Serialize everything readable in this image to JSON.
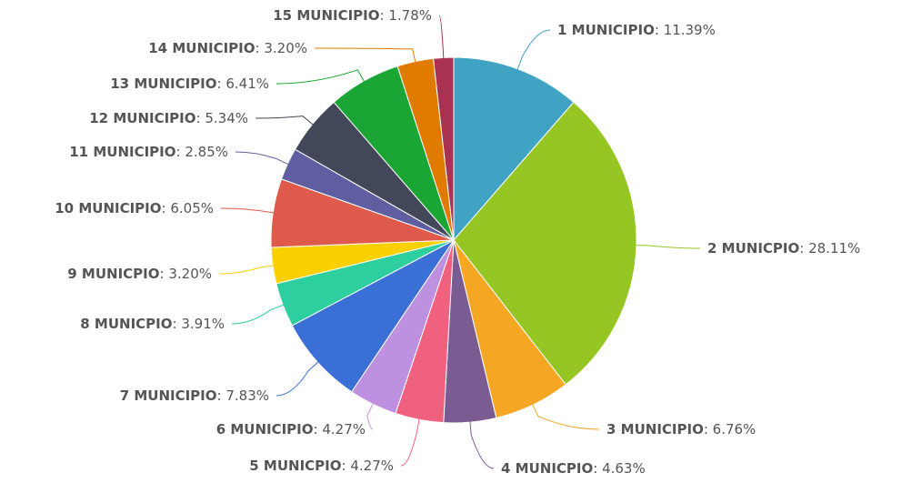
{
  "chart_data": {
    "type": "pie",
    "categories": [
      "1 MUNICIPIO",
      "2 MUNICPIO",
      "3 MUNICIPIO",
      "4 MUNICPIO",
      "5 MUNICPIO",
      "6 MUNICIPIO",
      "7 MUNICIPIO",
      "8 MUNICPIO",
      "9 MUNICPIO",
      "10 MUNICIPIO",
      "11 MUNICIPIO",
      "12 MUNICIPIO",
      "13 MUNICIPIO",
      "14 MUNICIPIO",
      "15 MUNICIPIO"
    ],
    "values": [
      11.39,
      28.11,
      6.76,
      4.63,
      4.27,
      4.27,
      7.83,
      3.91,
      3.2,
      6.05,
      2.85,
      5.34,
      6.41,
      3.2,
      1.78
    ],
    "value_labels": [
      "11.39%",
      "28.11%",
      "6.76%",
      "4.63%",
      "4.27%",
      "4.27%",
      "7.83%",
      "3.91%",
      "3.20%",
      "6.05%",
      "2.85%",
      "5.34%",
      "6.41%",
      "3.20%",
      "1.78%"
    ],
    "colors": [
      "#41a3c4",
      "#95c623",
      "#f5a623",
      "#7a5c92",
      "#f0607f",
      "#be90e0",
      "#3a6fd6",
      "#2ecf9e",
      "#fad000",
      "#e05a4c",
      "#5e5ea0",
      "#43475a",
      "#1aa534",
      "#e07b00",
      "#a83250"
    ]
  }
}
